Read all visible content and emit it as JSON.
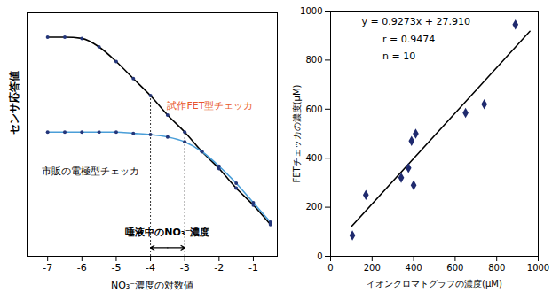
{
  "chart_data": [
    {
      "type": "line",
      "x_label": "NO₃⁻濃度の対数値",
      "y_label": "センサ応答値",
      "x": [
        -7,
        -6.5,
        -6,
        -5.5,
        -5,
        -4.5,
        -4,
        -3.5,
        -3,
        -2.5,
        -2,
        -1.5,
        -1,
        -0.5
      ],
      "series": [
        {
          "name": "試作FET型チェッカ",
          "color": "#000000",
          "marker": "circle",
          "values": [
            90,
            90,
            89.5,
            86,
            80,
            73,
            66,
            58,
            51,
            43,
            36,
            28,
            21,
            13
          ]
        },
        {
          "name": "市販の電極型チェッカ",
          "color": "#4a9ed8",
          "marker": "circle",
          "values": [
            51,
            51,
            51,
            51,
            51,
            50.5,
            50,
            49,
            47,
            43,
            37,
            30,
            22,
            14
          ]
        }
      ],
      "annotations": [
        {
          "text": "唾液中のNO₃⁻濃度",
          "x_range": [
            -4,
            -3
          ]
        }
      ],
      "xlim": [
        -7.6,
        -0.3
      ],
      "xticks": [
        -7,
        -6,
        -5,
        -4,
        -3,
        -2,
        -1
      ],
      "ylim": [
        0,
        100
      ],
      "yticks": [],
      "tick_labels": "x",
      "grid": false
    },
    {
      "type": "scatter",
      "x_label": "イオンクロマトグラフの濃度(μM)",
      "y_label": "FETチェッカの濃度(μM)",
      "x": [
        105,
        170,
        340,
        375,
        390,
        400,
        410,
        650,
        740,
        890
      ],
      "values": [
        85,
        250,
        320,
        360,
        470,
        290,
        500,
        585,
        620,
        945
      ],
      "color": "#1f2a6e",
      "marker": "diamond",
      "fit_line": {
        "x": [
          100,
          960
        ],
        "y": [
          120.6,
          918.1
        ]
      },
      "annotations": [
        "y = 0.9273x + 27.910",
        "r = 0.9474",
        "n = 10"
      ],
      "xlim": [
        0,
        1000
      ],
      "xticks": [
        0,
        200,
        400,
        600,
        800,
        1000
      ],
      "ylim": [
        0,
        1000
      ],
      "yticks": [
        0,
        200,
        400,
        600,
        800,
        1000
      ],
      "grid": false
    }
  ]
}
